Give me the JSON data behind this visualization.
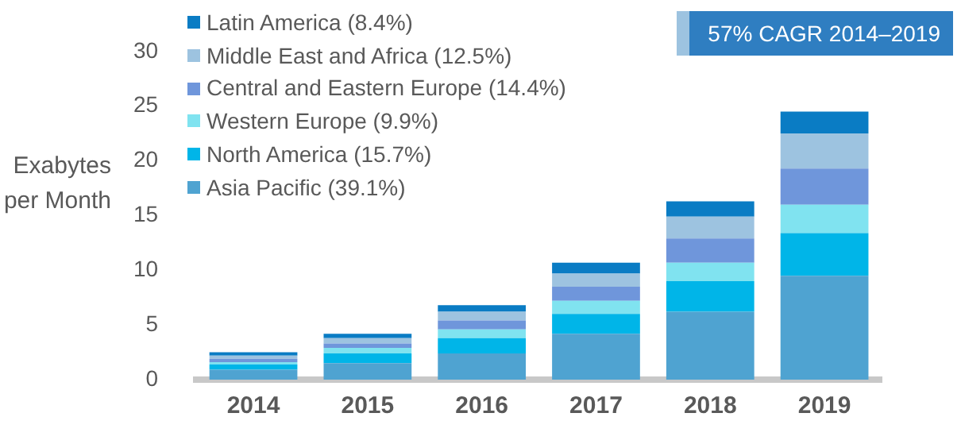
{
  "chart_data": {
    "type": "bar",
    "stacked": true,
    "ylabel": "Exabytes per Month",
    "categories": [
      "2014",
      "2015",
      "2016",
      "2017",
      "2018",
      "2019"
    ],
    "series": [
      {
        "name": "Asia Pacific (39.1%)",
        "color": "#4fa3d1",
        "values": [
          0.9,
          1.5,
          2.4,
          4.2,
          6.2,
          9.5
        ]
      },
      {
        "name": "North America (15.7%)",
        "color": "#00b5e8",
        "values": [
          0.5,
          0.9,
          1.4,
          1.8,
          2.8,
          3.9
        ]
      },
      {
        "name": "Western Europe (9.9%)",
        "color": "#80e3f0",
        "values": [
          0.2,
          0.5,
          0.8,
          1.2,
          1.7,
          2.6
        ]
      },
      {
        "name": "Central and Eastern Europe (14.4%)",
        "color": "#6f96db",
        "values": [
          0.3,
          0.4,
          0.8,
          1.3,
          2.2,
          3.3
        ]
      },
      {
        "name": "Middle East and Africa (12.5%)",
        "color": "#9dc3e0",
        "values": [
          0.3,
          0.5,
          0.8,
          1.2,
          2.0,
          3.2
        ]
      },
      {
        "name": "Latin America (8.4%)",
        "color": "#0a7cc4",
        "values": [
          0.3,
          0.4,
          0.6,
          1.0,
          1.4,
          2.0
        ]
      }
    ],
    "ylim": [
      0,
      30
    ],
    "yticks": [
      0,
      5,
      10,
      15,
      20,
      25,
      30
    ],
    "grid": false,
    "legend": "top left",
    "annotations": [
      "57% CAGR 2014–2019"
    ]
  }
}
